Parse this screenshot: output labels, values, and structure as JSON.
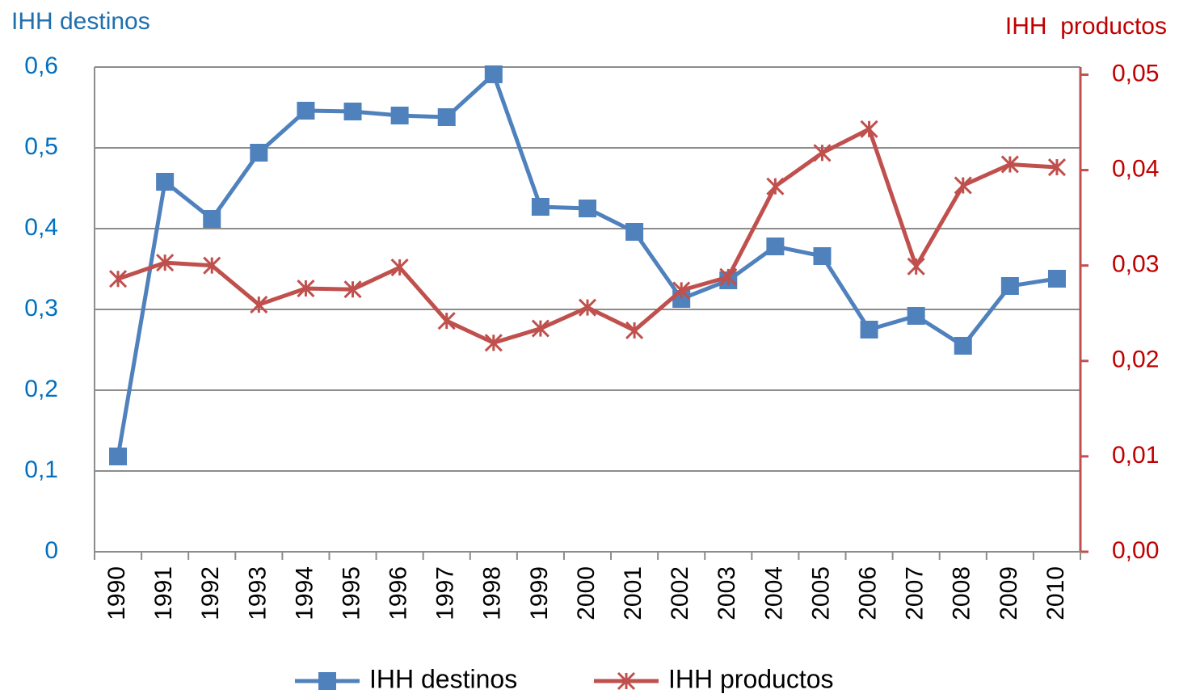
{
  "chart_data": {
    "type": "line",
    "y_title": "IHH destinos",
    "y2_title": "IHH  productos",
    "categories": [
      "1990",
      "1991",
      "1992",
      "1993",
      "1994",
      "1995",
      "1996",
      "1997",
      "1998",
      "1999",
      "2000",
      "2001",
      "2002",
      "2003",
      "2004",
      "2005",
      "2006",
      "2007",
      "2008",
      "2009",
      "2010"
    ],
    "series": [
      {
        "name": "IHH destinos",
        "color": "#4f81bd",
        "marker": "square",
        "values": [
          0.118,
          0.458,
          0.412,
          0.494,
          0.546,
          0.545,
          0.54,
          0.538,
          0.591,
          0.427,
          0.425,
          0.396,
          0.313,
          0.336,
          0.378,
          0.366,
          0.275,
          0.292,
          0.255,
          0.329,
          0.338
        ]
      },
      {
        "name": "IHH productos",
        "color": "#c0504d",
        "marker": "asterisk",
        "axis": "y2",
        "values": [
          0.0286,
          0.0303,
          0.03,
          0.0259,
          0.0276,
          0.0275,
          0.0298,
          0.0242,
          0.0219,
          0.0234,
          0.0256,
          0.0232,
          0.0274,
          0.0288,
          0.0383,
          0.0418,
          0.0443,
          0.0299,
          0.0384,
          0.0406,
          0.0403
        ]
      }
    ],
    "ylim": [
      0,
      0.6
    ],
    "yticks": [
      0,
      {
        "value": 0.1,
        "label": "0,1"
      },
      {
        "value": 0.2,
        "label": "0,2"
      },
      {
        "value": 0.3,
        "label": "0,3"
      },
      {
        "value": 0.4,
        "label": "0,4"
      },
      {
        "value": 0.5,
        "label": "0,5"
      },
      {
        "value": 0.6,
        "label": "0,6"
      }
    ],
    "y2lim": [
      0,
      0.0508
    ],
    "y2ticks": [
      {
        "value": 0,
        "label": "0,00"
      },
      {
        "value": 0.01,
        "label": "0,01"
      },
      {
        "value": 0.02,
        "label": "0,02"
      },
      {
        "value": 0.03,
        "label": "0,03"
      },
      {
        "value": 0.04,
        "label": "0,04"
      },
      {
        "value": 0.05,
        "label": "0,05"
      }
    ],
    "grid": true,
    "legend": "bottom"
  }
}
